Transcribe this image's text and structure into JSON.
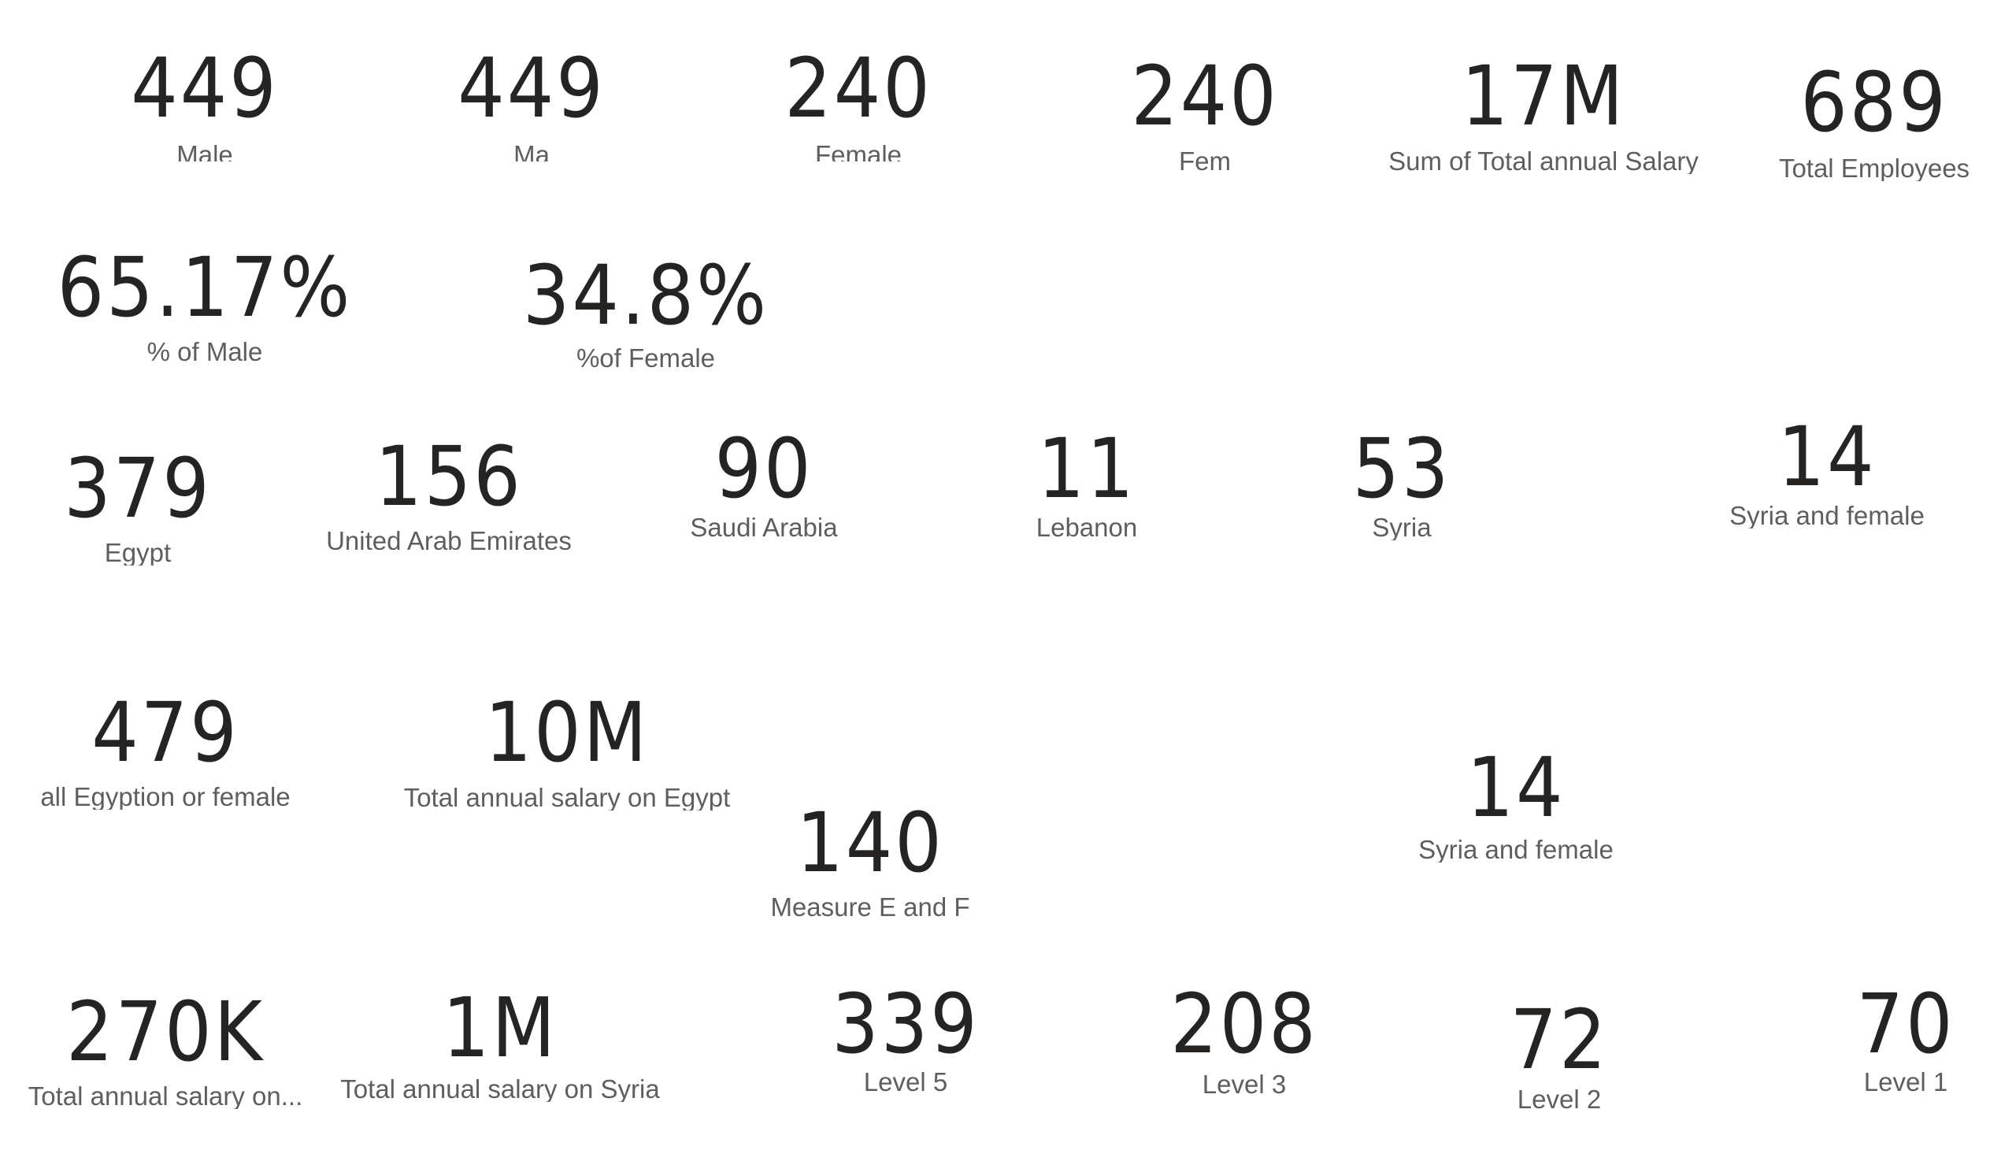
{
  "cards": {
    "male_1": {
      "value": "449",
      "label": "Male"
    },
    "male_2": {
      "value": "449",
      "label": "Ma"
    },
    "female_1": {
      "value": "240",
      "label": "Female"
    },
    "female_2": {
      "value": "240",
      "label": "Fem"
    },
    "total_salary": {
      "value": "17M",
      "label": "Sum of Total annual Salary"
    },
    "total_employees": {
      "value": "689",
      "label": "Total Employees"
    },
    "pct_male": {
      "value": "65.17%",
      "label": "% of Male"
    },
    "pct_female": {
      "value": "34.8%",
      "label": "%of Female"
    },
    "egypt": {
      "value": "379",
      "label": "Egypt"
    },
    "uae": {
      "value": "156",
      "label": "United Arab Emirates"
    },
    "saudi": {
      "value": "90",
      "label": "Saudi Arabia"
    },
    "lebanon": {
      "value": "11",
      "label": "Lebanon"
    },
    "syria": {
      "value": "53",
      "label": "Syria"
    },
    "syria_female_1": {
      "value": "14",
      "label": "Syria and female"
    },
    "egypt_or_female": {
      "value": "479",
      "label": "all Egyption  or female"
    },
    "salary_egypt": {
      "value": "10M",
      "label": "Total annual salary on Egypt"
    },
    "measure_e_f": {
      "value": "140",
      "label": "Measure E and F"
    },
    "syria_female_2": {
      "value": "14",
      "label": "Syria and female"
    },
    "salary_truncated": {
      "value": "270K",
      "label": "Total annual salary on..."
    },
    "salary_syria": {
      "value": "1M",
      "label": "Total annual salary on Syria"
    },
    "level5": {
      "value": "339",
      "label": "Level 5"
    },
    "level3": {
      "value": "208",
      "label": "Level 3"
    },
    "level2": {
      "value": "72",
      "label": "Level 2"
    },
    "level1": {
      "value": "70",
      "label": "Level 1"
    }
  }
}
